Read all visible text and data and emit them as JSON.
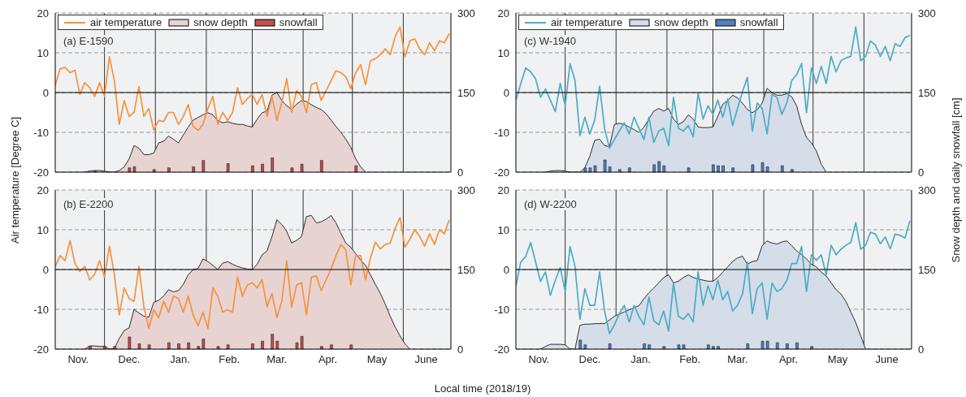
{
  "chart_data": [
    {
      "type": "line",
      "title": "(a) E-1590",
      "ylabel": "Air temperature [Degree C]",
      "x": [
        "2018-11-01",
        "2018-11-04",
        "2018-11-07",
        "2018-11-10",
        "2018-11-13",
        "2018-11-16",
        "2018-11-19",
        "2018-11-22",
        "2018-11-25",
        "2018-11-28",
        "2018-12-01",
        "2018-12-04",
        "2018-12-07",
        "2018-12-10",
        "2018-12-13",
        "2018-12-16",
        "2018-12-19",
        "2018-12-22",
        "2018-12-25",
        "2018-12-28",
        "2018-12-31",
        "2019-01-03",
        "2019-01-06",
        "2019-01-09",
        "2019-01-12",
        "2019-01-15",
        "2019-01-18",
        "2019-01-21",
        "2019-01-24",
        "2019-01-27",
        "2019-01-30",
        "2019-02-02",
        "2019-02-05",
        "2019-02-08",
        "2019-02-11",
        "2019-02-14",
        "2019-02-17",
        "2019-02-20",
        "2019-02-23",
        "2019-02-26",
        "2019-03-01",
        "2019-03-04",
        "2019-03-07",
        "2019-03-10",
        "2019-03-13",
        "2019-03-16",
        "2019-03-19",
        "2019-03-22",
        "2019-03-25",
        "2019-03-28",
        "2019-03-31",
        "2019-04-03",
        "2019-04-06",
        "2019-04-09",
        "2019-04-12",
        "2019-04-15",
        "2019-04-18",
        "2019-04-21",
        "2019-04-24",
        "2019-04-27",
        "2019-04-30",
        "2019-05-03",
        "2019-05-06",
        "2019-05-09",
        "2019-05-12",
        "2019-05-15",
        "2019-05-18",
        "2019-05-21",
        "2019-05-24",
        "2019-05-27",
        "2019-05-30",
        "2019-06-02",
        "2019-06-05",
        "2019-06-08",
        "2019-06-11",
        "2019-06-14",
        "2019-06-17",
        "2019-06-20",
        "2019-06-23",
        "2019-06-26",
        "2019-06-29"
      ],
      "xlim": [
        "2018-11-01",
        "2019-06-30"
      ],
      "xticks": [
        {
          "value": "2018-12-01",
          "label": null
        },
        {
          "value": "2019-01-01",
          "label": null
        },
        {
          "value": "2019-02-01",
          "label": null
        },
        {
          "value": "2019-03-01",
          "label": null
        },
        {
          "value": "2019-04-01",
          "label": null
        },
        {
          "value": "2019-05-01",
          "label": null
        },
        {
          "value": "2019-06-01",
          "label": null
        }
      ],
      "ylim": [
        -20,
        20
      ],
      "yticks": [
        -20,
        -10,
        0,
        10,
        20
      ],
      "y2lim": [
        0,
        300
      ],
      "y2ticks": [
        0,
        150,
        300
      ],
      "grid": true,
      "legend": "top left",
      "tick_labels": "y",
      "ref_lines": [
        {
          "axis": "y",
          "value": 0,
          "color": "#000000"
        }
      ],
      "series": [
        {
          "name": "air temperature",
          "color": "#f7923a",
          "values": [
            1.8,
            6.0,
            6.3,
            5.0,
            5.6,
            -0.5,
            2.5,
            1.2,
            -1.0,
            2.5,
            -0.9,
            9.0,
            3.0,
            -8.0,
            -2.0,
            -6.0,
            -5.0,
            1.5,
            -6.0,
            -4.0,
            -9.4,
            -7.0,
            -7.3,
            -5.0,
            -5.0,
            -8.0,
            -6.0,
            -3.0,
            -8.5,
            -9.5,
            -8.0,
            -4.0,
            -1.0,
            -8.0,
            -5.0,
            -7.0,
            -5.0,
            1.2,
            -3.0,
            -1.5,
            -0.5,
            -3.0,
            -0.5,
            -6.0,
            -1.0,
            -7.0,
            -2.5,
            3.5,
            -5.0,
            0.5,
            -1.0,
            -5.0,
            2.0,
            2.5,
            -2.0,
            0.5,
            3.0,
            5.5,
            5.0,
            4.0,
            1.0,
            5.0,
            7.0,
            2.0,
            8.0,
            8.5,
            9.5,
            11.0,
            9.5,
            14.0,
            16.5,
            9.0,
            13.0,
            13.5,
            11.0,
            9.5,
            12.5,
            10.5,
            13.0,
            12.5,
            14.8
          ]
        },
        {
          "name": "snow depth",
          "type": "area",
          "axis": "y2",
          "color": "#e8d3d3",
          "values": [
            null,
            null,
            null,
            null,
            null,
            null,
            0,
            2,
            3,
            3,
            2,
            0,
            0,
            3,
            10,
            25,
            50,
            45,
            33,
            33,
            36,
            55,
            58,
            68,
            62,
            55,
            70,
            85,
            98,
            103,
            108,
            112,
            108,
            97,
            93,
            95,
            92,
            90,
            90,
            87,
            85,
            100,
            112,
            115,
            145,
            150,
            135,
            125,
            118,
            128,
            135,
            133,
            127,
            122,
            118,
            110,
            98,
            86,
            75,
            62,
            47,
            25,
            10,
            0,
            null,
            null,
            null,
            null,
            null,
            null,
            null,
            null,
            null,
            null,
            null,
            null,
            null,
            null,
            null,
            null,
            null
          ]
        },
        {
          "name": "snowfall",
          "type": "bar",
          "axis": "y2",
          "color": "#c0504d",
          "values": [
            null,
            null,
            null,
            null,
            null,
            null,
            null,
            null,
            2,
            null,
            null,
            null,
            null,
            null,
            null,
            8,
            10,
            null,
            null,
            null,
            5,
            null,
            null,
            8,
            null,
            null,
            null,
            null,
            10,
            null,
            22,
            null,
            null,
            null,
            null,
            16,
            null,
            null,
            null,
            null,
            12,
            null,
            15,
            null,
            27,
            null,
            null,
            null,
            8,
            null,
            15,
            null,
            null,
            null,
            22,
            null,
            null,
            null,
            null,
            null,
            null,
            12,
            null,
            null,
            null,
            null,
            null,
            null,
            null,
            null,
            null,
            null,
            null,
            null,
            null,
            null,
            null,
            null,
            null,
            null,
            null
          ]
        }
      ]
    },
    {
      "type": "line",
      "title": "(c) W-1940",
      "y2label": "Snow depth and daily snowfall [cm]",
      "x": [
        "2018-11-01",
        "2018-11-04",
        "2018-11-07",
        "2018-11-10",
        "2018-11-13",
        "2018-11-16",
        "2018-11-19",
        "2018-11-22",
        "2018-11-25",
        "2018-11-28",
        "2018-12-01",
        "2018-12-04",
        "2018-12-07",
        "2018-12-10",
        "2018-12-13",
        "2018-12-16",
        "2018-12-19",
        "2018-12-22",
        "2018-12-25",
        "2018-12-28",
        "2018-12-31",
        "2019-01-03",
        "2019-01-06",
        "2019-01-09",
        "2019-01-12",
        "2019-01-15",
        "2019-01-18",
        "2019-01-21",
        "2019-01-24",
        "2019-01-27",
        "2019-01-30",
        "2019-02-02",
        "2019-02-05",
        "2019-02-08",
        "2019-02-11",
        "2019-02-14",
        "2019-02-17",
        "2019-02-20",
        "2019-02-23",
        "2019-02-26",
        "2019-03-01",
        "2019-03-04",
        "2019-03-07",
        "2019-03-10",
        "2019-03-13",
        "2019-03-16",
        "2019-03-19",
        "2019-03-22",
        "2019-03-25",
        "2019-03-28",
        "2019-03-31",
        "2019-04-03",
        "2019-04-06",
        "2019-04-09",
        "2019-04-12",
        "2019-04-15",
        "2019-04-18",
        "2019-04-21",
        "2019-04-24",
        "2019-04-27",
        "2019-04-30",
        "2019-05-03",
        "2019-05-06",
        "2019-05-09",
        "2019-05-12",
        "2019-05-15",
        "2019-05-18",
        "2019-05-21",
        "2019-05-24",
        "2019-05-27",
        "2019-05-30",
        "2019-06-02",
        "2019-06-05",
        "2019-06-08",
        "2019-06-11",
        "2019-06-14",
        "2019-06-17",
        "2019-06-20",
        "2019-06-23",
        "2019-06-26",
        "2019-06-29"
      ],
      "xlim": [
        "2018-11-01",
        "2019-06-30"
      ],
      "xticks": [
        {
          "value": "2018-12-01",
          "label": null
        },
        {
          "value": "2019-01-01",
          "label": null
        },
        {
          "value": "2019-02-01",
          "label": null
        },
        {
          "value": "2019-03-01",
          "label": null
        },
        {
          "value": "2019-04-01",
          "label": null
        },
        {
          "value": "2019-05-01",
          "label": null
        },
        {
          "value": "2019-06-01",
          "label": null
        }
      ],
      "ylim": [
        -20,
        20
      ],
      "yticks": [
        -20,
        -10,
        0,
        10,
        20
      ],
      "y2lim": [
        0,
        300
      ],
      "y2ticks": [
        0,
        150,
        300
      ],
      "grid": true,
      "legend": "top left",
      "tick_labels": "y",
      "ref_lines": [
        {
          "axis": "y",
          "value": 0,
          "color": "#000000"
        }
      ],
      "series": [
        {
          "name": "air temperature",
          "color": "#4bacc6",
          "values": [
            -1.9,
            2.3,
            6.2,
            5.2,
            3.4,
            -1.2,
            0.9,
            -1.9,
            -4.8,
            2.3,
            -3.3,
            7.3,
            3.0,
            -10.8,
            -6.2,
            -10.4,
            -6.9,
            1.6,
            -9.0,
            -14.0,
            -11.8,
            -9.7,
            -7.6,
            -10.4,
            -6.2,
            -9.0,
            -11.8,
            -6.2,
            -12.5,
            -9.7,
            -9.0,
            -13.3,
            -1.2,
            -9.0,
            -9.7,
            -8.3,
            -11.1,
            -0.1,
            -6.7,
            -3.3,
            -5.5,
            -1.9,
            -6.2,
            -1.6,
            -8.3,
            -4.0,
            0.2,
            3.8,
            -9.7,
            -2.6,
            -4.0,
            -10.4,
            -0.5,
            -1.2,
            -5.5,
            -2.6,
            3.0,
            4.5,
            7.3,
            -5.1,
            6.2,
            2.3,
            6.6,
            2.3,
            9.1,
            5.2,
            8.0,
            8.7,
            9.1,
            16.5,
            8.0,
            9.1,
            13.0,
            11.9,
            9.1,
            11.6,
            8.0,
            12.3,
            11.6,
            13.8,
            14.4
          ]
        },
        {
          "name": "snow depth",
          "type": "area",
          "axis": "y2",
          "color": "#d5dde8",
          "values": [
            null,
            null,
            null,
            null,
            null,
            null,
            0,
            2,
            3,
            3,
            2,
            0,
            0,
            0,
            8,
            30,
            60,
            62,
            50,
            48,
            90,
            92,
            90,
            85,
            80,
            75,
            85,
            100,
            115,
            120,
            115,
            120,
            100,
            90,
            95,
            108,
            100,
            85,
            84,
            84,
            85,
            105,
            128,
            135,
            145,
            140,
            130,
            118,
            112,
            118,
            130,
            158,
            150,
            145,
            145,
            148,
            142,
            125,
            90,
            65,
            55,
            40,
            15,
            0,
            null,
            null,
            null,
            null,
            null,
            null,
            null,
            null,
            null,
            null,
            null,
            null,
            null,
            null,
            null,
            null,
            null
          ]
        },
        {
          "name": "snowfall",
          "type": "bar",
          "axis": "y2",
          "color": "#4f81bd",
          "values": [
            null,
            null,
            null,
            null,
            null,
            null,
            null,
            null,
            null,
            null,
            null,
            null,
            null,
            null,
            8,
            8,
            12,
            null,
            23,
            10,
            null,
            5,
            null,
            8,
            null,
            null,
            null,
            null,
            14,
            20,
            12,
            null,
            null,
            null,
            null,
            8,
            null,
            null,
            null,
            null,
            14,
            12,
            12,
            null,
            8,
            null,
            null,
            null,
            14,
            null,
            18,
            10,
            null,
            null,
            12,
            null,
            5,
            null,
            null,
            null,
            null,
            null,
            null,
            null,
            null,
            null,
            null,
            null,
            null,
            null,
            null,
            null,
            null,
            null,
            null,
            null,
            null,
            null,
            null,
            null,
            null
          ]
        }
      ]
    },
    {
      "type": "line",
      "title": "(b) E-2200",
      "xlabel": "Local time (2018/19)",
      "x": [
        "2018-11-01",
        "2018-11-04",
        "2018-11-07",
        "2018-11-10",
        "2018-11-13",
        "2018-11-16",
        "2018-11-19",
        "2018-11-22",
        "2018-11-25",
        "2018-11-28",
        "2018-12-01",
        "2018-12-04",
        "2018-12-07",
        "2018-12-10",
        "2018-12-13",
        "2018-12-16",
        "2018-12-19",
        "2018-12-22",
        "2018-12-25",
        "2018-12-28",
        "2018-12-31",
        "2019-01-03",
        "2019-01-06",
        "2019-01-09",
        "2019-01-12",
        "2019-01-15",
        "2019-01-18",
        "2019-01-21",
        "2019-01-24",
        "2019-01-27",
        "2019-01-30",
        "2019-02-02",
        "2019-02-05",
        "2019-02-08",
        "2019-02-11",
        "2019-02-14",
        "2019-02-17",
        "2019-02-20",
        "2019-02-23",
        "2019-02-26",
        "2019-03-01",
        "2019-03-04",
        "2019-03-07",
        "2019-03-10",
        "2019-03-13",
        "2019-03-16",
        "2019-03-19",
        "2019-03-22",
        "2019-03-25",
        "2019-03-28",
        "2019-03-31",
        "2019-04-03",
        "2019-04-06",
        "2019-04-09",
        "2019-04-12",
        "2019-04-15",
        "2019-04-18",
        "2019-04-21",
        "2019-04-24",
        "2019-04-27",
        "2019-04-30",
        "2019-05-03",
        "2019-05-06",
        "2019-05-09",
        "2019-05-12",
        "2019-05-15",
        "2019-05-18",
        "2019-05-21",
        "2019-05-24",
        "2019-05-27",
        "2019-05-30",
        "2019-06-02",
        "2019-06-05",
        "2019-06-08",
        "2019-06-11",
        "2019-06-14",
        "2019-06-17",
        "2019-06-20",
        "2019-06-23",
        "2019-06-26",
        "2019-06-29"
      ],
      "xlim": [
        "2018-11-01",
        "2019-06-30"
      ],
      "xticks": [
        {
          "value": "2018-11-15",
          "label": "Nov."
        },
        {
          "value": "2018-12-01",
          "label": null
        },
        {
          "value": "2018-12-16",
          "label": "Dec."
        },
        {
          "value": "2019-01-01",
          "label": null
        },
        {
          "value": "2019-01-16",
          "label": "Jan."
        },
        {
          "value": "2019-02-01",
          "label": null
        },
        {
          "value": "2019-02-15",
          "label": "Feb."
        },
        {
          "value": "2019-03-01",
          "label": null
        },
        {
          "value": "2019-03-16",
          "label": "Mar."
        },
        {
          "value": "2019-04-01",
          "label": null
        },
        {
          "value": "2019-04-16",
          "label": "Apr."
        },
        {
          "value": "2019-05-01",
          "label": null
        },
        {
          "value": "2019-05-16",
          "label": "May"
        },
        {
          "value": "2019-06-01",
          "label": null
        },
        {
          "value": "2019-06-15",
          "label": "June"
        }
      ],
      "ylim": [
        -20,
        20
      ],
      "yticks": [
        -20,
        -10,
        0,
        10,
        20
      ],
      "y2lim": [
        0,
        300
      ],
      "y2ticks": [
        0,
        150,
        300
      ],
      "grid": true,
      "ref_lines": [
        {
          "axis": "y",
          "value": 0,
          "color": "#000000"
        }
      ],
      "series": [
        {
          "color": "#f7923a",
          "values": [
            0.8,
            3.5,
            2.2,
            7.3,
            1.5,
            -0.5,
            0.8,
            -2.6,
            -1.2,
            2.2,
            -1.9,
            5.9,
            -1.2,
            -11.4,
            -4.6,
            -7.3,
            -8.0,
            0.8,
            -9.4,
            -14.8,
            -10.1,
            -12.1,
            -8.0,
            -10.7,
            -6.7,
            -7.3,
            -10.7,
            -6.7,
            -11.4,
            -14.1,
            -10.7,
            -14.8,
            -4.6,
            -6.7,
            -10.7,
            -10.1,
            -10.7,
            -1.9,
            -6.7,
            -3.9,
            -3.3,
            -4.6,
            -2.6,
            -9.4,
            -6.0,
            -12.1,
            -8.0,
            2.2,
            -9.4,
            -3.9,
            -3.3,
            -11.4,
            -1.9,
            -1.6,
            -5.3,
            -2.6,
            0.1,
            3.5,
            6.3,
            4.9,
            -3.9,
            3.5,
            3.5,
            -2.6,
            2.9,
            6.9,
            5.2,
            6.3,
            6.6,
            10.3,
            13.1,
            5.6,
            7.6,
            10.0,
            8.3,
            5.9,
            9.0,
            6.3,
            10.0,
            9.0,
            12.5
          ]
        },
        {
          "type": "area",
          "axis": "y2",
          "color": "#e8d3d3",
          "values": [
            null,
            null,
            null,
            null,
            null,
            null,
            0,
            6,
            6,
            5,
            5,
            0,
            1,
            20,
            35,
            40,
            75,
            68,
            62,
            60,
            88,
            92,
            100,
            112,
            108,
            110,
            122,
            140,
            150,
            152,
            170,
            165,
            158,
            150,
            162,
            165,
            160,
            156,
            153,
            151,
            150,
            160,
            178,
            185,
            212,
            244,
            235,
            222,
            200,
            205,
            212,
            250,
            252,
            238,
            240,
            245,
            252,
            238,
            218,
            200,
            192,
            180,
            168,
            158,
            140,
            122,
            105,
            85,
            62,
            42,
            25,
            10,
            0,
            null,
            null,
            null,
            null,
            null,
            null,
            null,
            null
          ]
        },
        {
          "type": "bar",
          "axis": "y2",
          "color": "#c0504d",
          "values": [
            null,
            null,
            null,
            null,
            null,
            null,
            null,
            5,
            null,
            null,
            5,
            null,
            5,
            null,
            null,
            23,
            null,
            10,
            null,
            8,
            null,
            null,
            null,
            12,
            null,
            10,
            null,
            12,
            null,
            5,
            19,
            null,
            null,
            5,
            null,
            8,
            null,
            null,
            null,
            null,
            10,
            null,
            15,
            null,
            28,
            15,
            null,
            null,
            null,
            12,
            24,
            null,
            null,
            null,
            5,
            null,
            8,
            null,
            null,
            null,
            8,
            null,
            null,
            null,
            null,
            null,
            null,
            null,
            null,
            null,
            null,
            null,
            null,
            null,
            null,
            null,
            null,
            null,
            null,
            null,
            null
          ]
        }
      ]
    },
    {
      "type": "line",
      "title": "(d) W-2200",
      "x": [
        "2018-11-01",
        "2018-11-04",
        "2018-11-07",
        "2018-11-10",
        "2018-11-13",
        "2018-11-16",
        "2018-11-19",
        "2018-11-22",
        "2018-11-25",
        "2018-11-28",
        "2018-12-01",
        "2018-12-04",
        "2018-12-07",
        "2018-12-10",
        "2018-12-13",
        "2018-12-16",
        "2018-12-19",
        "2018-12-22",
        "2018-12-25",
        "2018-12-28",
        "2018-12-31",
        "2019-01-03",
        "2019-01-06",
        "2019-01-09",
        "2019-01-12",
        "2019-01-15",
        "2019-01-18",
        "2019-01-21",
        "2019-01-24",
        "2019-01-27",
        "2019-01-30",
        "2019-02-02",
        "2019-02-05",
        "2019-02-08",
        "2019-02-11",
        "2019-02-14",
        "2019-02-17",
        "2019-02-20",
        "2019-02-23",
        "2019-02-26",
        "2019-03-01",
        "2019-03-04",
        "2019-03-07",
        "2019-03-10",
        "2019-03-13",
        "2019-03-16",
        "2019-03-19",
        "2019-03-22",
        "2019-03-25",
        "2019-03-28",
        "2019-03-31",
        "2019-04-03",
        "2019-04-06",
        "2019-04-09",
        "2019-04-12",
        "2019-04-15",
        "2019-04-18",
        "2019-04-21",
        "2019-04-24",
        "2019-04-27",
        "2019-04-30",
        "2019-05-03",
        "2019-05-06",
        "2019-05-09",
        "2019-05-12",
        "2019-05-15",
        "2019-05-18",
        "2019-05-21",
        "2019-05-24",
        "2019-05-27",
        "2019-05-30",
        "2019-06-02",
        "2019-06-05",
        "2019-06-08",
        "2019-06-11",
        "2019-06-14",
        "2019-06-17",
        "2019-06-20",
        "2019-06-23",
        "2019-06-26",
        "2019-06-29"
      ],
      "xlim": [
        "2018-11-01",
        "2019-06-30"
      ],
      "xticks": [
        {
          "value": "2018-11-15",
          "label": "Nov."
        },
        {
          "value": "2018-12-01",
          "label": null
        },
        {
          "value": "2018-12-16",
          "label": "Dec."
        },
        {
          "value": "2019-01-01",
          "label": null
        },
        {
          "value": "2019-01-16",
          "label": "Jan."
        },
        {
          "value": "2019-02-01",
          "label": null
        },
        {
          "value": "2019-02-15",
          "label": "Feb."
        },
        {
          "value": "2019-03-01",
          "label": null
        },
        {
          "value": "2019-03-16",
          "label": "Mar."
        },
        {
          "value": "2019-04-01",
          "label": null
        },
        {
          "value": "2019-04-16",
          "label": "Apr."
        },
        {
          "value": "2019-05-01",
          "label": null
        },
        {
          "value": "2019-05-16",
          "label": "May"
        },
        {
          "value": "2019-06-01",
          "label": null
        },
        {
          "value": "2019-06-15",
          "label": "June"
        }
      ],
      "ylim": [
        -20,
        20
      ],
      "yticks": [
        -20,
        -10,
        0,
        10,
        20
      ],
      "y2lim": [
        0,
        300
      ],
      "y2ticks": [
        0,
        150,
        300
      ],
      "grid": true,
      "ref_lines": [
        {
          "axis": "y",
          "value": 0,
          "color": "#000000"
        }
      ],
      "series": [
        {
          "color": "#4bacc6",
          "values": [
            -4.1,
            1.9,
            3.3,
            6.8,
            1.9,
            -3.0,
            -0.6,
            -6.5,
            -2.7,
            0.5,
            -5.5,
            5.8,
            0.8,
            -12.5,
            -4.8,
            -9.0,
            -9.0,
            -0.6,
            -10.4,
            -16.1,
            -13.9,
            -11.1,
            -9.0,
            -13.2,
            -9.0,
            -11.8,
            -13.9,
            -6.9,
            -12.9,
            -13.9,
            -10.4,
            -15.5,
            -3.4,
            -11.8,
            -12.5,
            -11.1,
            -13.2,
            -0.6,
            -9.0,
            -4.1,
            -7.6,
            -2.7,
            -7.6,
            -5.5,
            -10.4,
            -9.0,
            -6.2,
            1.9,
            -11.1,
            -4.8,
            -3.4,
            -12.5,
            -3.4,
            -5.5,
            -4.8,
            -2.7,
            1.5,
            1.5,
            5.8,
            -5.5,
            3.7,
            2.3,
            3.7,
            -1.3,
            6.1,
            3.7,
            5.1,
            6.1,
            6.8,
            11.8,
            5.1,
            6.1,
            9.4,
            8.9,
            6.5,
            8.2,
            5.2,
            8.9,
            8.6,
            7.9,
            12.3
          ]
        },
        {
          "type": "area",
          "axis": "y2",
          "color": "#d5dde8",
          "values": [
            null,
            null,
            null,
            null,
            null,
            0,
            5,
            9,
            9,
            9,
            8,
            0,
            0,
            45,
            47,
            47,
            48,
            48,
            48,
            55,
            62,
            66,
            70,
            74,
            78,
            82,
            95,
            106,
            115,
            125,
            135,
            140,
            125,
            128,
            135,
            140,
            135,
            132,
            130,
            128,
            128,
            135,
            145,
            155,
            165,
            172,
            175,
            160,
            165,
            167,
            195,
            204,
            200,
            198,
            202,
            204,
            195,
            185,
            178,
            170,
            160,
            155,
            145,
            138,
            125,
            112,
            104,
            90,
            70,
            50,
            25,
            0,
            null,
            null,
            null,
            null,
            null,
            null,
            null,
            null,
            null
          ]
        },
        {
          "type": "bar",
          "axis": "y2",
          "color": "#4f81bd",
          "values": [
            null,
            null,
            null,
            null,
            null,
            null,
            null,
            null,
            null,
            null,
            null,
            null,
            null,
            17,
            8,
            null,
            null,
            null,
            null,
            10,
            null,
            null,
            null,
            null,
            null,
            null,
            10,
            8,
            null,
            null,
            5,
            null,
            null,
            8,
            8,
            null,
            null,
            null,
            null,
            8,
            5,
            5,
            null,
            null,
            null,
            null,
            null,
            10,
            null,
            null,
            15,
            15,
            null,
            12,
            null,
            10,
            null,
            12,
            null,
            null,
            5,
            null,
            null,
            null,
            null,
            null,
            null,
            null,
            null,
            null,
            null,
            null,
            null,
            null,
            null,
            null,
            null,
            null,
            null,
            null,
            null
          ]
        }
      ]
    }
  ]
}
